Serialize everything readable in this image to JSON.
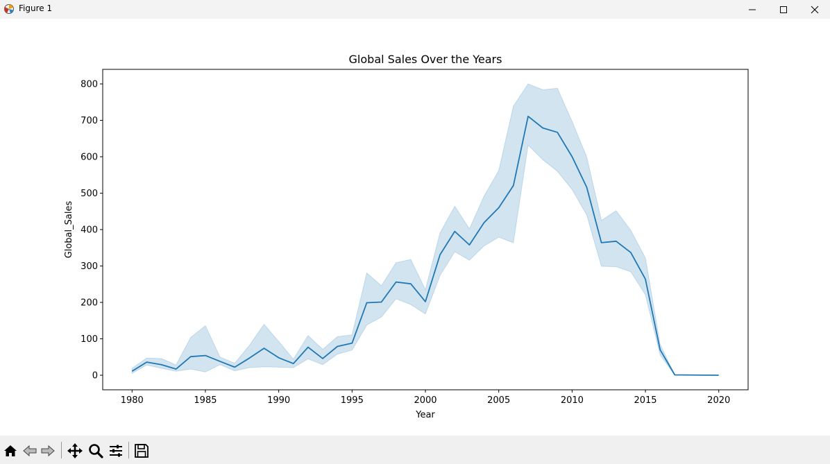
{
  "window": {
    "title": "Figure 1"
  },
  "toolbar": {
    "buttons": [
      {
        "name": "home-icon"
      },
      {
        "name": "back-icon"
      },
      {
        "name": "forward-icon"
      },
      {
        "name": "pan-icon"
      },
      {
        "name": "zoom-icon"
      },
      {
        "name": "configure-subplots-icon"
      },
      {
        "name": "save-icon"
      }
    ]
  },
  "colors": {
    "line": "#1f77b4",
    "band": "#1f77b4",
    "titlebar": "#f3f3f3",
    "toolbar": "#f0f0f0"
  },
  "chart_data": {
    "type": "line",
    "title": "Global Sales Over the Years",
    "xlabel": "Year",
    "ylabel": "Global_Sales",
    "xlim": [
      1978,
      2022
    ],
    "ylim": [
      -40,
      840
    ],
    "xticks": [
      1980,
      1985,
      1990,
      1995,
      2000,
      2005,
      2010,
      2015,
      2020
    ],
    "yticks": [
      0,
      100,
      200,
      300,
      400,
      500,
      600,
      700,
      800
    ],
    "grid": false,
    "legend": "none",
    "x": [
      1980,
      1981,
      1982,
      1983,
      1984,
      1985,
      1986,
      1987,
      1988,
      1989,
      1990,
      1991,
      1992,
      1993,
      1994,
      1995,
      1996,
      1997,
      1998,
      1999,
      2000,
      2001,
      2002,
      2003,
      2004,
      2005,
      2006,
      2007,
      2008,
      2009,
      2010,
      2011,
      2012,
      2013,
      2014,
      2015,
      2016,
      2017,
      2020
    ],
    "series": [
      {
        "values": [
          11,
          36,
          29,
          17,
          51,
          54,
          38,
          22,
          47,
          74,
          48,
          32,
          77,
          46,
          79,
          88,
          199,
          201,
          256,
          251,
          202,
          331,
          395,
          358,
          419,
          460,
          521,
          711,
          679,
          667,
          600,
          516,
          364,
          368,
          337,
          264,
          70,
          1,
          0
        ],
        "lower": [
          5,
          28,
          19,
          11,
          17,
          9,
          29,
          12,
          21,
          23,
          22,
          21,
          45,
          29,
          58,
          69,
          138,
          160,
          210,
          194,
          168,
          274,
          339,
          316,
          355,
          379,
          364,
          632,
          592,
          560,
          510,
          440,
          299,
          298,
          284,
          221,
          56,
          0,
          0
        ],
        "upper": [
          19,
          47,
          46,
          28,
          104,
          136,
          50,
          33,
          82,
          140,
          93,
          44,
          109,
          71,
          106,
          111,
          281,
          246,
          309,
          318,
          235,
          391,
          464,
          402,
          492,
          562,
          739,
          800,
          784,
          788,
          697,
          599,
          425,
          452,
          398,
          322,
          85,
          1,
          0
        ]
      }
    ]
  }
}
